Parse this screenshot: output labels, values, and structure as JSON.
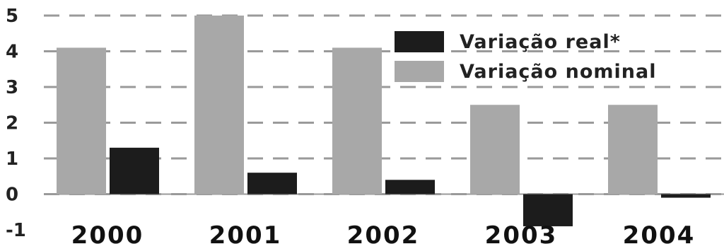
{
  "chart_data": {
    "type": "bar",
    "title": "",
    "xlabel": "",
    "ylabel": "",
    "categories": [
      "2000",
      "2001",
      "2002",
      "2003",
      "2004"
    ],
    "series": [
      {
        "name": "Variação nominal",
        "color": "#a8a8a8",
        "values": [
          4.1,
          5.0,
          4.1,
          2.5,
          2.5
        ]
      },
      {
        "name": "Variação real*",
        "color": "#1c1c1c",
        "values": [
          1.3,
          0.6,
          0.4,
          -0.9,
          -0.1
        ]
      }
    ],
    "ylim": [
      -1,
      5
    ],
    "yticks": [
      "-1",
      "0",
      "1",
      "2",
      "3",
      "4",
      "5"
    ],
    "grid": true,
    "legend_position": "top-right",
    "legend_order": [
      "Variação real*",
      "Variação nominal"
    ]
  }
}
